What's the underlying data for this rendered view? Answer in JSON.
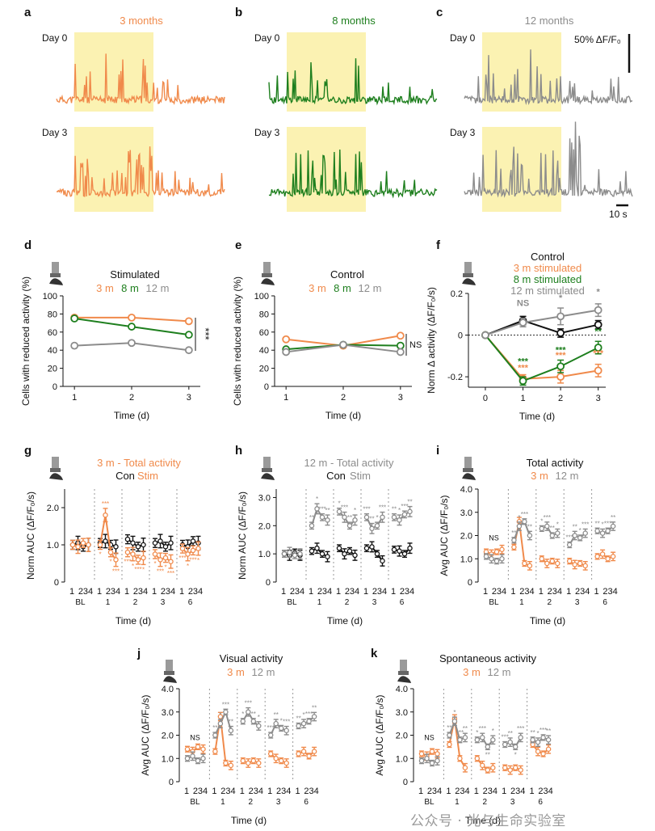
{
  "colors": {
    "m3": "#f08a4b",
    "m8": "#1e7f1e",
    "m12": "#8c8c8c",
    "con": "#111111",
    "shade": "#fbf2b2"
  },
  "watermark": "公众号 · 光与生命实验室",
  "traces": {
    "panels": [
      {
        "letter": "a",
        "title": "3 months",
        "series": "m3",
        "seed": 11
      },
      {
        "letter": "b",
        "title": "8 months",
        "series": "m8",
        "seed": 23
      },
      {
        "letter": "c",
        "title": "12 months",
        "series": "m12",
        "seed": 37
      }
    ],
    "day0": "Day 0",
    "day3": "Day 3",
    "scale_y_label": "50% ΔF/F₀",
    "scale_x_label": "10 s"
  },
  "chart_data": [
    {
      "panel": "d",
      "type": "line",
      "title": "Stimulated",
      "ylabel": "Cells with reduced activity (%)",
      "xlabel": "Time (d)",
      "x": [
        1,
        2,
        3
      ],
      "ylim": [
        0,
        100
      ],
      "yticks": [
        0,
        20,
        40,
        60,
        80,
        100
      ],
      "legend": [
        "3 m",
        "8 m",
        "12 m"
      ],
      "series": [
        {
          "name": "3 m",
          "key": "m3",
          "values": [
            76,
            76,
            72
          ]
        },
        {
          "name": "8 m",
          "key": "m8",
          "values": [
            75,
            66,
            57
          ]
        },
        {
          "name": "12 m",
          "key": "m12",
          "values": [
            45,
            48,
            40
          ]
        }
      ],
      "annotation": "***"
    },
    {
      "panel": "e",
      "type": "line",
      "title": "Control",
      "ylabel": "Cells with reduced activity (%)",
      "xlabel": "Time (d)",
      "x": [
        1,
        2,
        3
      ],
      "ylim": [
        0,
        100
      ],
      "yticks": [
        0,
        20,
        40,
        60,
        80,
        100
      ],
      "legend": [
        "3 m",
        "8 m",
        "12 m"
      ],
      "series": [
        {
          "name": "3 m",
          "key": "m3",
          "values": [
            52,
            45,
            56
          ]
        },
        {
          "name": "8 m",
          "key": "m8",
          "values": [
            41,
            46,
            45
          ]
        },
        {
          "name": "12 m",
          "key": "m12",
          "values": [
            38,
            46,
            38
          ]
        }
      ],
      "annotation": "NS"
    },
    {
      "panel": "f",
      "type": "line",
      "ylabel": "Norm Δ activity (ΔF/F₀/s)",
      "xlabel": "Time (d)",
      "x": [
        0,
        1,
        2,
        3
      ],
      "ylim": [
        -0.25,
        0.2
      ],
      "yticks": [
        -0.2,
        0,
        0.2
      ],
      "legend": [
        "Control",
        "3 m stimulated",
        "8 m stimulated",
        "12 m stimulated"
      ],
      "series": [
        {
          "name": "Control",
          "key": "con",
          "values": [
            0,
            0.07,
            0.01,
            0.05
          ],
          "err": [
            0,
            0.02,
            0.02,
            0.02
          ]
        },
        {
          "name": "3 m stimulated",
          "key": "m3",
          "values": [
            0,
            -0.21,
            -0.2,
            -0.17
          ],
          "err": [
            0,
            0.02,
            0.03,
            0.03
          ]
        },
        {
          "name": "8 m stimulated",
          "key": "m8",
          "values": [
            0,
            -0.22,
            -0.15,
            -0.06
          ],
          "err": [
            0,
            0.02,
            0.03,
            0.03
          ]
        },
        {
          "name": "12 m stimulated",
          "key": "m12",
          "values": [
            0,
            0.06,
            0.09,
            0.12
          ],
          "err": [
            0,
            0.02,
            0.04,
            0.03
          ]
        }
      ],
      "labels": [
        {
          "x": 1,
          "y": 0.14,
          "text": "NS",
          "key": "m12"
        },
        {
          "x": 2,
          "y": 0.165,
          "text": "*",
          "key": "m12"
        },
        {
          "x": 3,
          "y": 0.195,
          "text": "*",
          "key": "m12"
        },
        {
          "x": 1,
          "y": -0.14,
          "text": "***",
          "key": "m8"
        },
        {
          "x": 1,
          "y": -0.17,
          "text": "***",
          "key": "m3"
        },
        {
          "x": 2,
          "y": -0.085,
          "text": "***",
          "key": "m8"
        },
        {
          "x": 2,
          "y": -0.11,
          "text": "***",
          "key": "m3"
        },
        {
          "x": 3,
          "y": 0.005,
          "text": "**",
          "key": "m8"
        },
        {
          "x": 3,
          "y": -0.1,
          "text": "***",
          "key": "m3"
        }
      ]
    },
    {
      "panel": "g",
      "type": "line",
      "title": "3 m - Total activity",
      "title_key": "m3",
      "legend": [
        {
          "text": "Con",
          "key": "con"
        },
        {
          "text": "Stim",
          "key": "m3"
        }
      ],
      "ylabel": "Norm AUC (ΔF/F₀/s)",
      "xlabel": "Time (d)",
      "ylim": [
        0,
        2.5
      ],
      "yticks": [
        0,
        1.0,
        2.0
      ],
      "tick_digits": [
        "1",
        "234"
      ],
      "groups": [
        "BL",
        "1",
        "2",
        "3",
        "6"
      ],
      "series": [
        {
          "name": "Con",
          "key": "con",
          "values": [
            [
              1.0,
              1.05,
              0.95,
              1.0
            ],
            [
              1.05,
              1.1,
              1.0,
              0.95
            ],
            [
              1.15,
              1.05,
              0.95,
              1.0
            ],
            [
              1.05,
              1.1,
              0.95,
              1.05
            ],
            [
              1.0,
              0.95,
              1.1,
              1.05
            ]
          ]
        },
        {
          "name": "Stim",
          "key": "m3",
          "values": [
            [
              1.0,
              0.95,
              1.05,
              1.0
            ],
            [
              1.0,
              1.8,
              0.8,
              0.6
            ],
            [
              0.8,
              0.75,
              0.6,
              0.65
            ],
            [
              0.75,
              0.6,
              0.65,
              0.55
            ],
            [
              0.9,
              0.75,
              0.85,
              0.9
            ]
          ]
        }
      ],
      "annotations": [
        "***",
        "*"
      ]
    },
    {
      "panel": "h",
      "type": "line",
      "title": "12 m - Total activity",
      "title_key": "m12",
      "legend": [
        {
          "text": "Con",
          "key": "con"
        },
        {
          "text": "Stim",
          "key": "m12"
        }
      ],
      "ylabel": "Norm AUC (ΔF/F₀/s)",
      "xlabel": "Time (d)",
      "ylim": [
        0,
        3.3
      ],
      "yticks": [
        0,
        1.0,
        2.0,
        3.0
      ],
      "tick_digits": [
        "1",
        "234"
      ],
      "groups": [
        "BL",
        "1",
        "2",
        "3",
        "6"
      ],
      "series": [
        {
          "name": "Con",
          "key": "con",
          "values": [
            [
              1.0,
              0.95,
              1.05,
              0.95
            ],
            [
              1.1,
              1.2,
              1.0,
              0.9
            ],
            [
              1.2,
              1.0,
              1.1,
              0.95
            ],
            [
              1.2,
              1.25,
              1.0,
              0.75
            ],
            [
              1.15,
              1.1,
              1.0,
              1.2
            ]
          ]
        },
        {
          "name": "Stim",
          "key": "m12",
          "values": [
            [
              1.0,
              1.05,
              0.95,
              1.0
            ],
            [
              2.0,
              2.6,
              2.3,
              2.2
            ],
            [
              2.5,
              2.3,
              2.0,
              2.2
            ],
            [
              2.3,
              1.9,
              2.0,
              2.3
            ],
            [
              2.3,
              2.2,
              2.4,
              2.5
            ]
          ]
        }
      ],
      "annotations": [
        "***",
        "**",
        "*"
      ]
    },
    {
      "panel": "i",
      "type": "line",
      "title": "Total activity",
      "legend": [
        {
          "text": "3 m",
          "key": "m3"
        },
        {
          "text": "12 m",
          "key": "m12"
        }
      ],
      "ylabel": "Avg AUC (ΔF/F₀/s)",
      "xlabel": "Time (d)",
      "ylim": [
        0,
        4.0
      ],
      "yticks": [
        0,
        1.0,
        2.0,
        3.0,
        4.0
      ],
      "tick_digits": [
        "1",
        "234"
      ],
      "groups": [
        "BL",
        "1",
        "2",
        "3",
        "6"
      ],
      "label_ns": "NS",
      "series": [
        {
          "name": "3 m",
          "key": "m3",
          "values": [
            [
              1.3,
              1.2,
              1.3,
              1.4
            ],
            [
              1.5,
              2.6,
              0.8,
              0.7
            ],
            [
              1.0,
              0.8,
              0.9,
              0.8
            ],
            [
              0.9,
              0.75,
              0.8,
              0.7
            ],
            [
              1.1,
              1.2,
              1.0,
              1.1
            ]
          ]
        },
        {
          "name": "12 m",
          "key": "m12",
          "values": [
            [
              1.1,
              1.0,
              0.9,
              1.0
            ],
            [
              1.8,
              2.4,
              2.6,
              2.0
            ],
            [
              2.3,
              2.4,
              2.0,
              2.1
            ],
            [
              1.6,
              2.0,
              1.9,
              2.1
            ],
            [
              2.2,
              2.1,
              2.2,
              2.4
            ]
          ]
        }
      ],
      "annotations": [
        "***",
        "**",
        "*"
      ]
    },
    {
      "panel": "j",
      "type": "line",
      "title": "Visual activity",
      "legend": [
        {
          "text": "3 m",
          "key": "m3"
        },
        {
          "text": "12 m",
          "key": "m12"
        }
      ],
      "ylabel": "Avg AUC (ΔF/F₀/s)",
      "xlabel": "Time (d)",
      "ylim": [
        0,
        4.0
      ],
      "yticks": [
        0,
        1.0,
        2.0,
        3.0,
        4.0
      ],
      "tick_digits": [
        "1",
        "234"
      ],
      "groups": [
        "BL",
        "1",
        "2",
        "3",
        "6"
      ],
      "label_ns": "NS",
      "series": [
        {
          "name": "3 m",
          "key": "m3",
          "values": [
            [
              1.4,
              1.3,
              1.5,
              1.4
            ],
            [
              1.3,
              2.8,
              0.8,
              0.7
            ],
            [
              0.9,
              0.8,
              0.9,
              0.8
            ],
            [
              1.2,
              1.0,
              0.9,
              0.8
            ],
            [
              1.2,
              1.3,
              1.1,
              1.3
            ]
          ]
        },
        {
          "name": "12 m",
          "key": "m12",
          "values": [
            [
              1.0,
              1.1,
              0.9,
              1.0
            ],
            [
              2.0,
              2.5,
              3.0,
              2.2
            ],
            [
              2.6,
              3.0,
              2.6,
              2.4
            ],
            [
              2.0,
              2.5,
              2.3,
              2.2
            ],
            [
              2.4,
              2.5,
              2.6,
              2.8
            ]
          ]
        }
      ],
      "annotations": [
        "***",
        "**",
        "*"
      ]
    },
    {
      "panel": "k",
      "type": "line",
      "title": "Spontaneous activity",
      "legend": [
        {
          "text": "3 m",
          "key": "m3"
        },
        {
          "text": "12 m",
          "key": "m12"
        }
      ],
      "ylabel": "Avg AUC (ΔF/F₀/s)",
      "xlabel": "Time (d)",
      "ylim": [
        0,
        4.0
      ],
      "yticks": [
        0,
        1.0,
        2.0,
        3.0,
        4.0
      ],
      "tick_digits": [
        "1",
        "234"
      ],
      "groups": [
        "BL",
        "1",
        "2",
        "3",
        "6"
      ],
      "label_ns": "NS",
      "series": [
        {
          "name": "3 m",
          "key": "m3",
          "values": [
            [
              1.2,
              1.1,
              1.3,
              1.2
            ],
            [
              1.6,
              2.7,
              1.0,
              0.6
            ],
            [
              1.0,
              0.7,
              0.5,
              0.6
            ],
            [
              0.6,
              0.5,
              0.6,
              0.5
            ],
            [
              1.6,
              1.3,
              1.2,
              1.4
            ]
          ]
        },
        {
          "name": "12 m",
          "key": "m12",
          "values": [
            [
              0.9,
              1.0,
              0.8,
              0.9
            ],
            [
              2.0,
              2.6,
              1.8,
              1.9
            ],
            [
              1.8,
              1.9,
              1.5,
              1.8
            ],
            [
              1.6,
              1.7,
              1.5,
              1.9
            ],
            [
              1.8,
              1.7,
              1.9,
              1.8
            ]
          ]
        }
      ],
      "annotations": [
        "***",
        "**",
        "*"
      ]
    }
  ]
}
